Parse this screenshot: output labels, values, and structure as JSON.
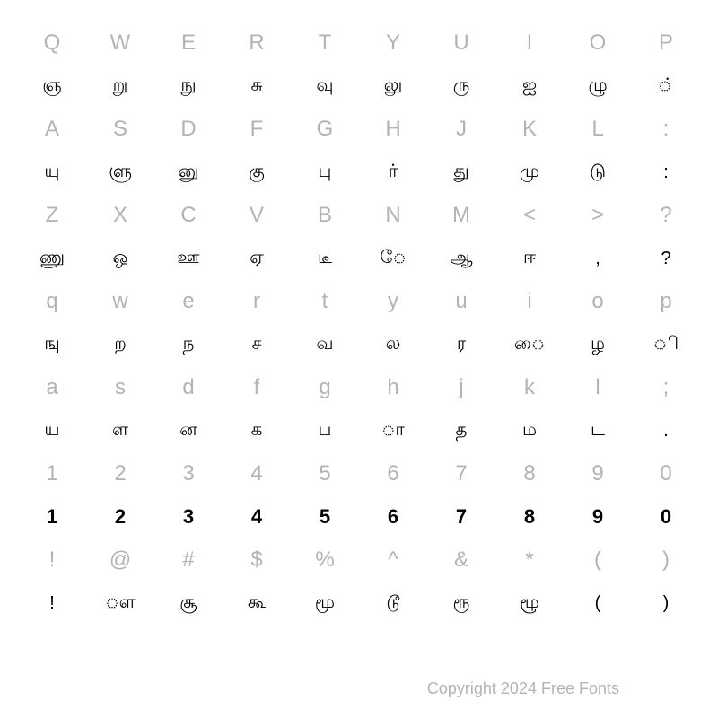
{
  "rows": [
    {
      "type": "key",
      "cells": [
        "Q",
        "W",
        "E",
        "R",
        "T",
        "Y",
        "U",
        "I",
        "O",
        "P"
      ]
    },
    {
      "type": "glyph",
      "cells": [
        "ஞ",
        "று",
        "நு",
        "சு",
        "வு",
        "லு",
        "ரு",
        "ஐ",
        "ழு",
        "்"
      ]
    },
    {
      "type": "key",
      "cells": [
        "A",
        "S",
        "D",
        "F",
        "G",
        "H",
        "J",
        "K",
        "L",
        ":"
      ]
    },
    {
      "type": "glyph",
      "cells": [
        "யு",
        "ளு",
        "னு",
        "கு",
        "பு",
        "ர்",
        "து",
        "மு",
        "டு",
        ":"
      ]
    },
    {
      "type": "key",
      "cells": [
        "Z",
        "X",
        "C",
        "V",
        "B",
        "N",
        "M",
        "<",
        ">",
        "?"
      ]
    },
    {
      "type": "glyph",
      "cells": [
        "ணு",
        "ஒ",
        "ஊ",
        "ஏ",
        "டீ",
        "ே",
        "ஆ",
        "ஈ",
        ",",
        "?"
      ]
    },
    {
      "type": "key",
      "cells": [
        "q",
        "w",
        "e",
        "r",
        "t",
        "y",
        "u",
        "i",
        "o",
        "p"
      ]
    },
    {
      "type": "glyph",
      "cells": [
        "ஙு",
        "ற",
        "ந",
        "ச",
        "வ",
        "ல",
        "ர",
        "ை",
        "ழ",
        "ி"
      ]
    },
    {
      "type": "key",
      "cells": [
        "a",
        "s",
        "d",
        "f",
        "g",
        "h",
        "j",
        "k",
        "l",
        ";"
      ]
    },
    {
      "type": "glyph",
      "cells": [
        "ய",
        "ள",
        "ன",
        "க",
        "ப",
        "ா",
        "த",
        "ம",
        "ட",
        "."
      ]
    },
    {
      "type": "key",
      "cells": [
        "1",
        "2",
        "3",
        "4",
        "5",
        "6",
        "7",
        "8",
        "9",
        "0"
      ]
    },
    {
      "type": "glyph-bold",
      "cells": [
        "1",
        "2",
        "3",
        "4",
        "5",
        "6",
        "7",
        "8",
        "9",
        "0"
      ]
    },
    {
      "type": "key",
      "cells": [
        "!",
        "@",
        "#",
        "$",
        "%",
        "^",
        "&",
        "*",
        "(",
        ")"
      ]
    },
    {
      "type": "glyph",
      "cells": [
        "!",
        "ௗ",
        "சூ",
        "கூ",
        "மூ",
        "டூ",
        "ரூ",
        "ழூ",
        "(",
        ")"
      ]
    }
  ],
  "footer": "Copyright 2024 Free Fonts",
  "colors": {
    "key": "#b3b3b3",
    "glyph": "#000000",
    "bg": "#ffffff"
  }
}
